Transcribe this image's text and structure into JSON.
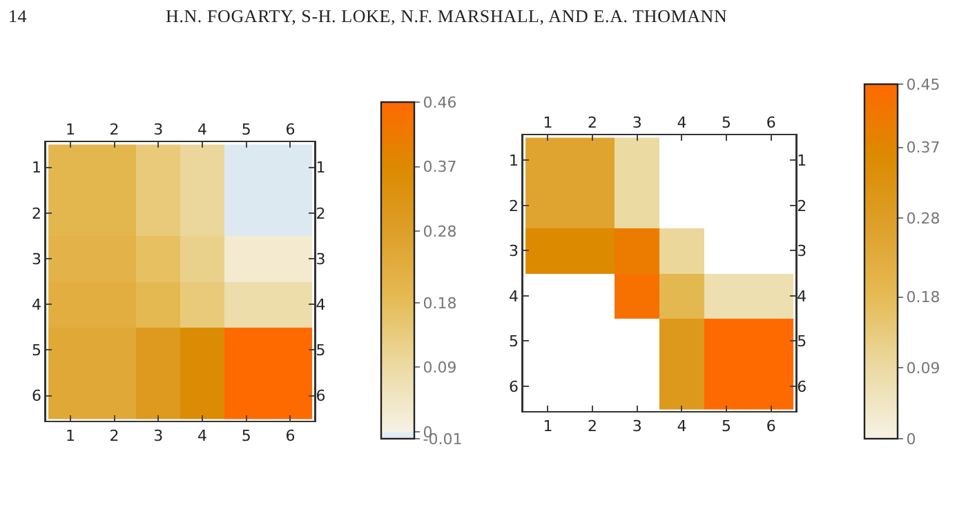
{
  "chart_data": [
    {
      "type": "heatmap",
      "annotations": [
        "14",
        "H.N. FOGARTY, S-H. LOKE, N.F. MARSHALL, AND E.A. THOMANN"
      ],
      "categories": [
        "1",
        "2",
        "3",
        "4",
        "5",
        "6"
      ],
      "y_categories": [
        "1",
        "2",
        "3",
        "4",
        "5",
        "6"
      ],
      "y2_categories": [
        "1",
        "2",
        "3",
        "4",
        "5",
        "6"
      ],
      "cells": [
        [
          0.2,
          0.2,
          0.14,
          0.1,
          -0.01,
          -0.01
        ],
        [
          0.2,
          0.2,
          0.14,
          0.1,
          -0.01,
          -0.01
        ],
        [
          0.21,
          0.21,
          0.17,
          0.12,
          0.03,
          0.03
        ],
        [
          0.23,
          0.23,
          0.19,
          0.14,
          0.08,
          0.08
        ],
        [
          0.25,
          0.25,
          0.3,
          0.36,
          0.46,
          0.46
        ],
        [
          0.25,
          0.25,
          0.3,
          0.36,
          0.46,
          0.46
        ]
      ],
      "clim": [
        -0.01,
        0.46
      ],
      "cticks": [
        -0.01,
        0,
        0.09,
        0.18,
        0.28,
        0.37,
        0.46
      ]
    },
    {
      "type": "heatmap",
      "categories": [
        "1",
        "2",
        "3",
        "4",
        "5",
        "6"
      ],
      "y_categories": [
        "1",
        "2",
        "3",
        "4",
        "5",
        "6"
      ],
      "y2_categories": [
        "1",
        "2",
        "3",
        "4",
        "5",
        "6"
      ],
      "cells": [
        [
          0.26,
          0.26,
          0.09,
          null,
          null,
          null
        ],
        [
          0.26,
          0.26,
          0.09,
          null,
          null,
          null
        ],
        [
          0.36,
          0.36,
          0.4,
          0.1,
          null,
          null
        ],
        [
          null,
          null,
          0.43,
          0.19,
          0.07,
          0.07
        ],
        [
          null,
          null,
          null,
          0.3,
          0.45,
          0.45
        ],
        [
          null,
          null,
          null,
          0.3,
          0.45,
          0.45
        ]
      ],
      "clim": [
        0,
        0.45
      ],
      "cticks": [
        0,
        0.09,
        0.18,
        0.28,
        0.37,
        0.45
      ]
    }
  ]
}
